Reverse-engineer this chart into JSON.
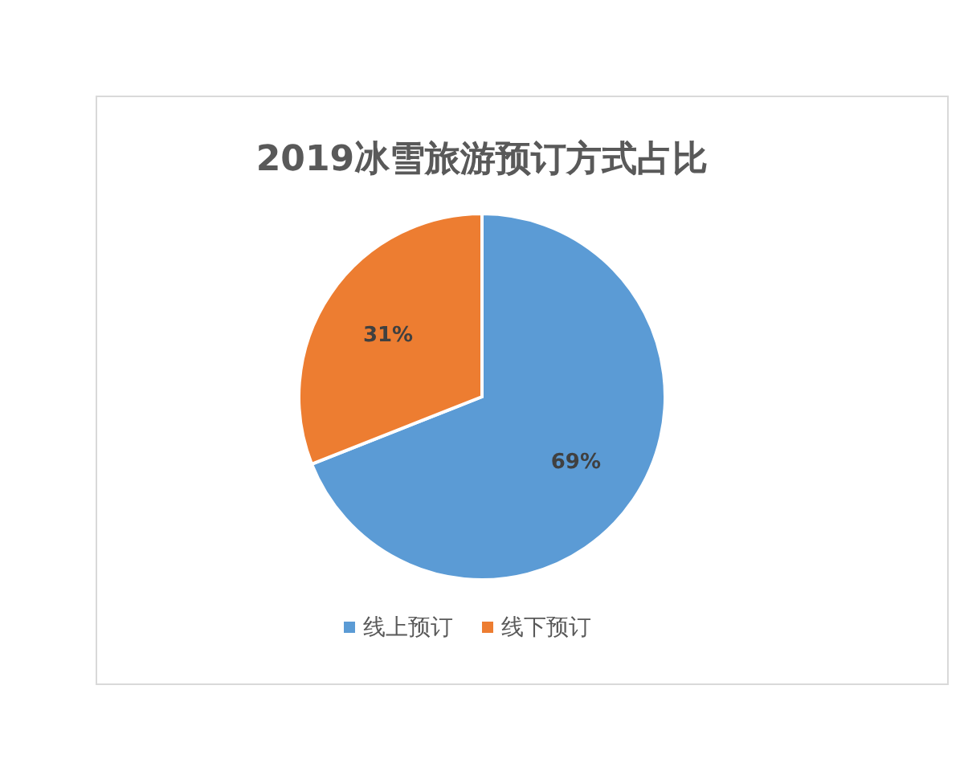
{
  "chart_data": {
    "type": "pie",
    "title": "2019冰雪旅游预订方式占比",
    "categories": [
      "线上预订",
      "线下预订"
    ],
    "values": [
      69,
      31
    ],
    "colors": [
      "#5b9bd5",
      "#ed7d31"
    ],
    "value_labels": [
      "69%",
      "31%"
    ],
    "legend": "bottom"
  }
}
